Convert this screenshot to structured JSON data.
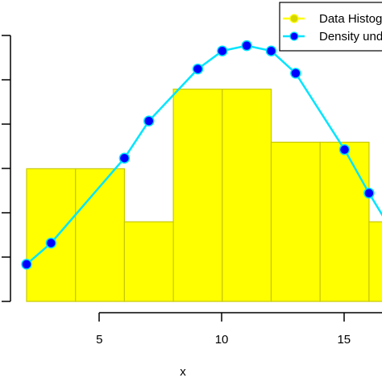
{
  "chart_data": {
    "type": "bar",
    "xlabel": "x",
    "xlim": [
      1.5,
      16.5
    ],
    "ylim": [
      0,
      0.142
    ],
    "x_ticks": [
      5,
      10,
      15
    ],
    "y_tick_labels_visible": false,
    "histogram": {
      "name": "Data Histogram",
      "color": "#ffff00",
      "edge_color": "#c8c800",
      "bin_edges": [
        2,
        4,
        6,
        8,
        10,
        12,
        14,
        16,
        18
      ],
      "values": [
        0.0625,
        0.0625,
        0.0375,
        0.1,
        0.1,
        0.075,
        0.075,
        0.0375
      ]
    },
    "density": {
      "name": "Density under normal",
      "line_color": "#00e5ff",
      "marker_color": "#0000ff",
      "x": [
        2,
        3,
        6,
        7,
        9,
        10,
        11,
        12,
        13,
        15,
        16,
        17
      ],
      "y": [
        0.0175,
        0.0275,
        0.0675,
        0.085,
        0.1095,
        0.118,
        0.1205,
        0.118,
        0.1075,
        0.0715,
        0.051,
        0.032
      ]
    },
    "legend": {
      "position": "top-right",
      "entries": [
        "Data Histogram",
        "Density under normal"
      ]
    }
  }
}
